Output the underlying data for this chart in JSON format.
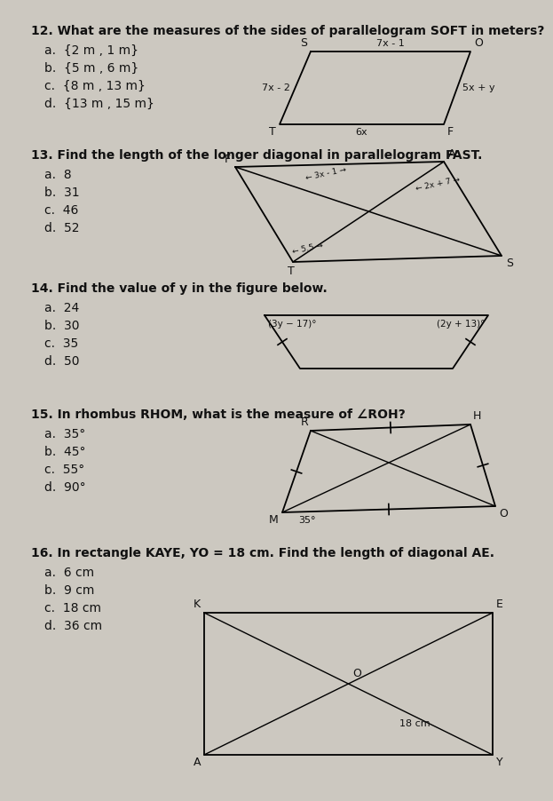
{
  "bg_color": "#ccc8c0",
  "text_color": "#111111",
  "fs": 10.0,
  "q12_text": "12. What are the measures of the sides of parallelogram SOFT in meters?",
  "q12_opts": [
    "a.  {2 m , 1 m}",
    "b.  {5 m , 6 m}",
    "c.  {8 m , 13 m}",
    "d.  {13 m , 15 m}"
  ],
  "q13_text": "13. Find the length of the longer diagonal in parallelogram FAST.",
  "q13_opts": [
    "a.  8",
    "b.  31",
    "c.  46",
    "d.  52"
  ],
  "q14_text": "14. Find the value of y in the figure below.",
  "q14_opts": [
    "a.  24",
    "b.  30",
    "c.  35",
    "d.  50"
  ],
  "q15_text": "15. In rhombus RHOM, what is the measure of ∠ROH?",
  "q15_opts": [
    "a.  35°",
    "b.  45°",
    "c.  55°",
    "d.  90°"
  ],
  "q16_text": "16. In rectangle KAYE, YO = 18 cm. Find the length of diagonal AE.",
  "q16_opts": [
    "a.  6 cm",
    "b.  9 cm",
    "c.  18 cm",
    "d.  36 cm"
  ]
}
